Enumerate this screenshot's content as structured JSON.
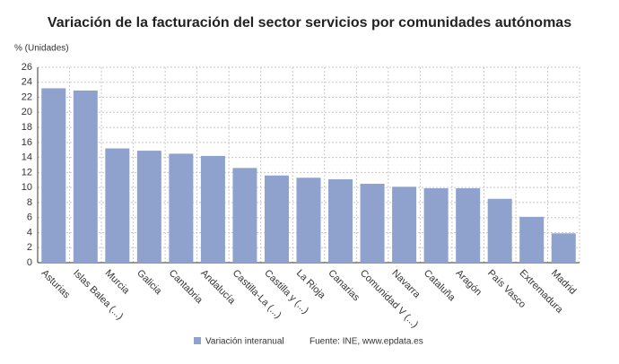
{
  "chart_data": {
    "type": "bar",
    "title": "Variación de la facturación del sector servicios por comunidades autónomas",
    "y_label": "% (Unidades)",
    "source": "Fuente: INE, www.epdata.es",
    "categories": [
      "Asturias",
      "Islas Balea (...)",
      "Murcia",
      "Galicia",
      "Cantabria",
      "Andalucía",
      "Castilla-La (...)",
      "Castilla y (...)",
      "La Rioja",
      "Canarias",
      "Comunidad V (...)",
      "Navarra",
      "Cataluña",
      "Aragón",
      "País Vasco",
      "Extremadura",
      "Madrid"
    ],
    "series": [
      {
        "name": "Variación interanual",
        "color": "#8fa2cd",
        "values": [
          23.2,
          22.9,
          15.2,
          14.9,
          14.5,
          14.2,
          12.6,
          11.6,
          11.3,
          11.1,
          10.5,
          10.1,
          9.9,
          9.9,
          8.5,
          6.1,
          3.9
        ]
      }
    ],
    "ylim": [
      0,
      26
    ],
    "yticks": [
      0,
      2,
      4,
      6,
      8,
      10,
      12,
      14,
      16,
      18,
      20,
      22,
      24,
      26
    ],
    "grid": true
  }
}
